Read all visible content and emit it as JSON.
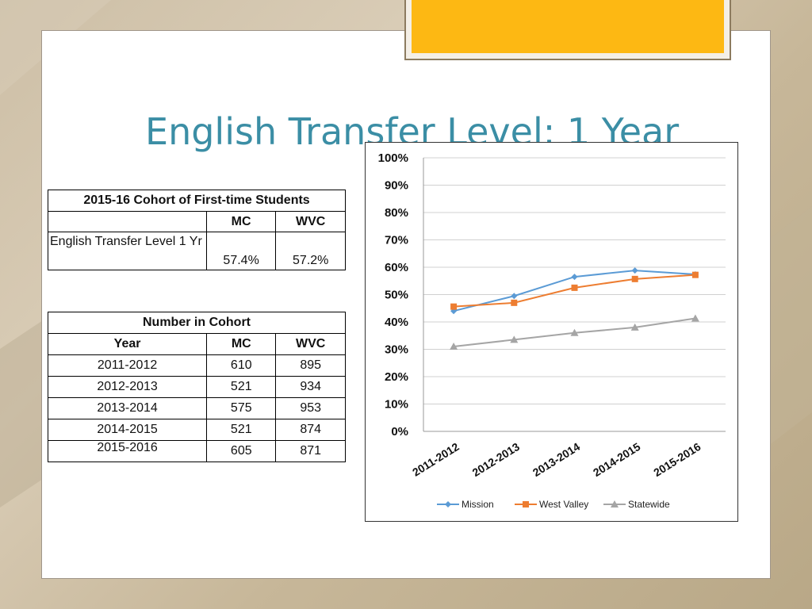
{
  "slide": {
    "title": "English Transfer Level:  1 Year"
  },
  "cohort_table": {
    "title": "2015-16 Cohort of First-time Students",
    "col_mc": "MC",
    "col_wvc": "WVC",
    "row_label": "English Transfer Level 1 Yr",
    "mc_value": "57.4%",
    "wvc_value": "57.2%"
  },
  "number_table": {
    "title": "Number in Cohort",
    "col_year": "Year",
    "col_mc": "MC",
    "col_wvc": "WVC",
    "rows": [
      {
        "year": "2011-2012",
        "mc": "610",
        "wvc": "895"
      },
      {
        "year": "2012-2013",
        "mc": "521",
        "wvc": "934"
      },
      {
        "year": "2013-2014",
        "mc": "575",
        "wvc": "953"
      },
      {
        "year": "2014-2015",
        "mc": "521",
        "wvc": "874"
      },
      {
        "year": "2015-2016",
        "mc": "605",
        "wvc": "871"
      }
    ]
  },
  "chart_data": {
    "type": "line",
    "categories": [
      "2011-2012",
      "2012-2013",
      "2013-2014",
      "2014-2015",
      "2015-2016"
    ],
    "series": [
      {
        "name": "Mission",
        "values": [
          44,
          49.5,
          56.5,
          58.8,
          57.4
        ],
        "color": "#5b9bd5",
        "marker": "diamond"
      },
      {
        "name": "West Valley",
        "values": [
          45.6,
          47,
          52.5,
          55.7,
          57.2
        ],
        "color": "#ed7d31",
        "marker": "square"
      },
      {
        "name": "Statewide",
        "values": [
          31,
          33.5,
          36,
          38,
          41.3
        ],
        "color": "#a5a5a5",
        "marker": "triangle"
      }
    ],
    "ylim": [
      0,
      100
    ],
    "yticks": [
      "0%",
      "10%",
      "20%",
      "30%",
      "40%",
      "50%",
      "60%",
      "70%",
      "80%",
      "90%",
      "100%"
    ],
    "grid": true,
    "legend_position": "bottom",
    "title": "",
    "xlabel": "",
    "ylabel": ""
  }
}
